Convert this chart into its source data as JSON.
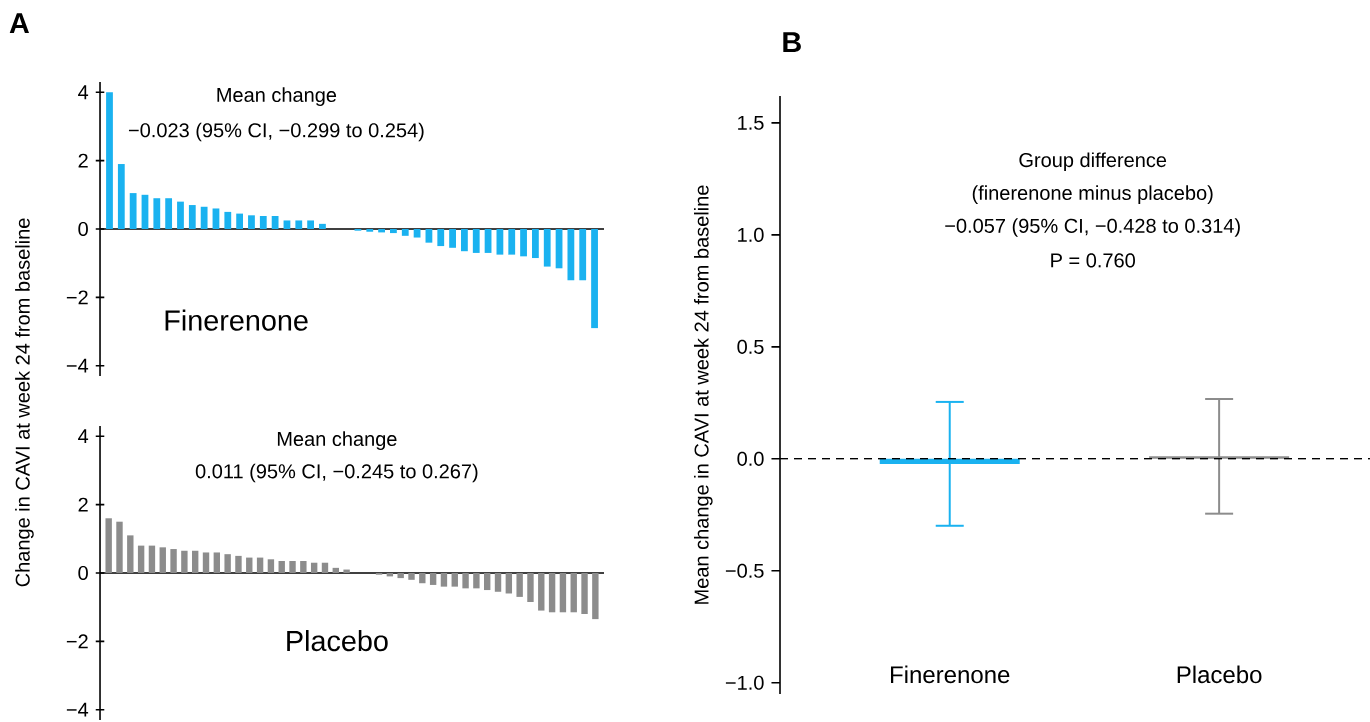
{
  "chart_data": [
    {
      "type": "bar",
      "title": "Finerenone",
      "ylabel": "Change in CAVI at week 24 from baseline",
      "annotations": [
        "A",
        "Mean change",
        "−0.023 (95% CI, −0.299 to 0.254)"
      ],
      "categories": [
        null,
        null,
        null,
        null,
        null,
        null,
        null,
        null,
        null,
        null,
        null,
        null,
        null,
        null,
        null,
        null,
        null,
        null,
        null,
        null,
        null,
        null,
        null,
        null,
        null,
        null,
        null,
        null,
        null,
        null,
        null,
        null,
        null,
        null,
        null,
        null,
        null,
        null,
        null,
        null,
        null,
        null
      ],
      "values": [
        4.0,
        1.9,
        1.05,
        1.0,
        0.9,
        0.9,
        0.8,
        0.7,
        0.65,
        0.6,
        0.5,
        0.45,
        0.4,
        0.38,
        0.38,
        0.25,
        0.25,
        0.25,
        0.15,
        0,
        0,
        -0.05,
        -0.08,
        -0.1,
        -0.12,
        -0.2,
        -0.25,
        -0.4,
        -0.5,
        -0.55,
        -0.65,
        -0.7,
        -0.7,
        -0.75,
        -0.75,
        -0.8,
        -0.85,
        -1.1,
        -1.15,
        -1.5,
        -1.5,
        -2.9
      ],
      "color": "#1ab2f0",
      "ylim": [
        -4.3,
        4.3
      ],
      "yticks": [
        {
          "value": -4,
          "label": "−4"
        },
        {
          "value": -2,
          "label": "−2"
        },
        0,
        2,
        4
      ],
      "tick_labels": "y"
    },
    {
      "type": "bar",
      "title": "Placebo",
      "annotations": [
        "Mean change",
        "0.011 (95% CI, −0.245 to 0.267)"
      ],
      "categories": [
        null,
        null,
        null,
        null,
        null,
        null,
        null,
        null,
        null,
        null,
        null,
        null,
        null,
        null,
        null,
        null,
        null,
        null,
        null,
        null,
        null,
        null,
        null,
        null,
        null,
        null,
        null,
        null,
        null,
        null,
        null,
        null,
        null,
        null,
        null,
        null,
        null,
        null,
        null,
        null,
        null,
        null,
        null,
        null,
        null,
        null
      ],
      "values": [
        1.6,
        1.5,
        1.1,
        0.8,
        0.8,
        0.75,
        0.7,
        0.65,
        0.65,
        0.6,
        0.6,
        0.55,
        0.5,
        0.45,
        0.45,
        0.4,
        0.35,
        0.35,
        0.35,
        0.3,
        0.3,
        0.15,
        0.1,
        0,
        0,
        -0.05,
        -0.1,
        -0.15,
        -0.2,
        -0.3,
        -0.35,
        -0.4,
        -0.4,
        -0.45,
        -0.45,
        -0.5,
        -0.55,
        -0.6,
        -0.7,
        -0.85,
        -1.1,
        -1.15,
        -1.15,
        -1.15,
        -1.2,
        -1.35
      ],
      "color": "#8c8c8c",
      "ylim": [
        -4.3,
        4.3
      ],
      "yticks": [
        {
          "value": -4,
          "label": "−4"
        },
        {
          "value": -2,
          "label": "−2"
        },
        0,
        2,
        4
      ],
      "tick_labels": "y"
    },
    {
      "type": "bar",
      "ylabel": "Mean change in CAVI at week 24 from baseline",
      "annotations": [
        "B",
        "Group difference",
        "(finerenone minus placebo)",
        "−0.057 (95% CI, −0.428 to 0.314)",
        "P = 0.760"
      ],
      "categories": [
        "Finerenone",
        "Placebo"
      ],
      "values": [
        -0.023,
        0.011
      ],
      "colors": [
        "#1ab2f0",
        "#8c8c8c"
      ],
      "errors": [
        [
          -0.299,
          0.254
        ],
        [
          -0.245,
          0.267
        ]
      ],
      "ylim": [
        -1.05,
        1.62
      ],
      "yticks": [
        {
          "value": -1,
          "label": "−1.0"
        },
        {
          "value": -0.5,
          "label": "−0.5"
        },
        {
          "value": 0,
          "label": "0.0"
        },
        0.5,
        {
          "value": 1,
          "label": "1.0"
        },
        1.5
      ],
      "ref_lines": [
        {
          "axis": "y",
          "value": 0,
          "line_style": "dashed",
          "color": "#000000"
        }
      ]
    }
  ]
}
